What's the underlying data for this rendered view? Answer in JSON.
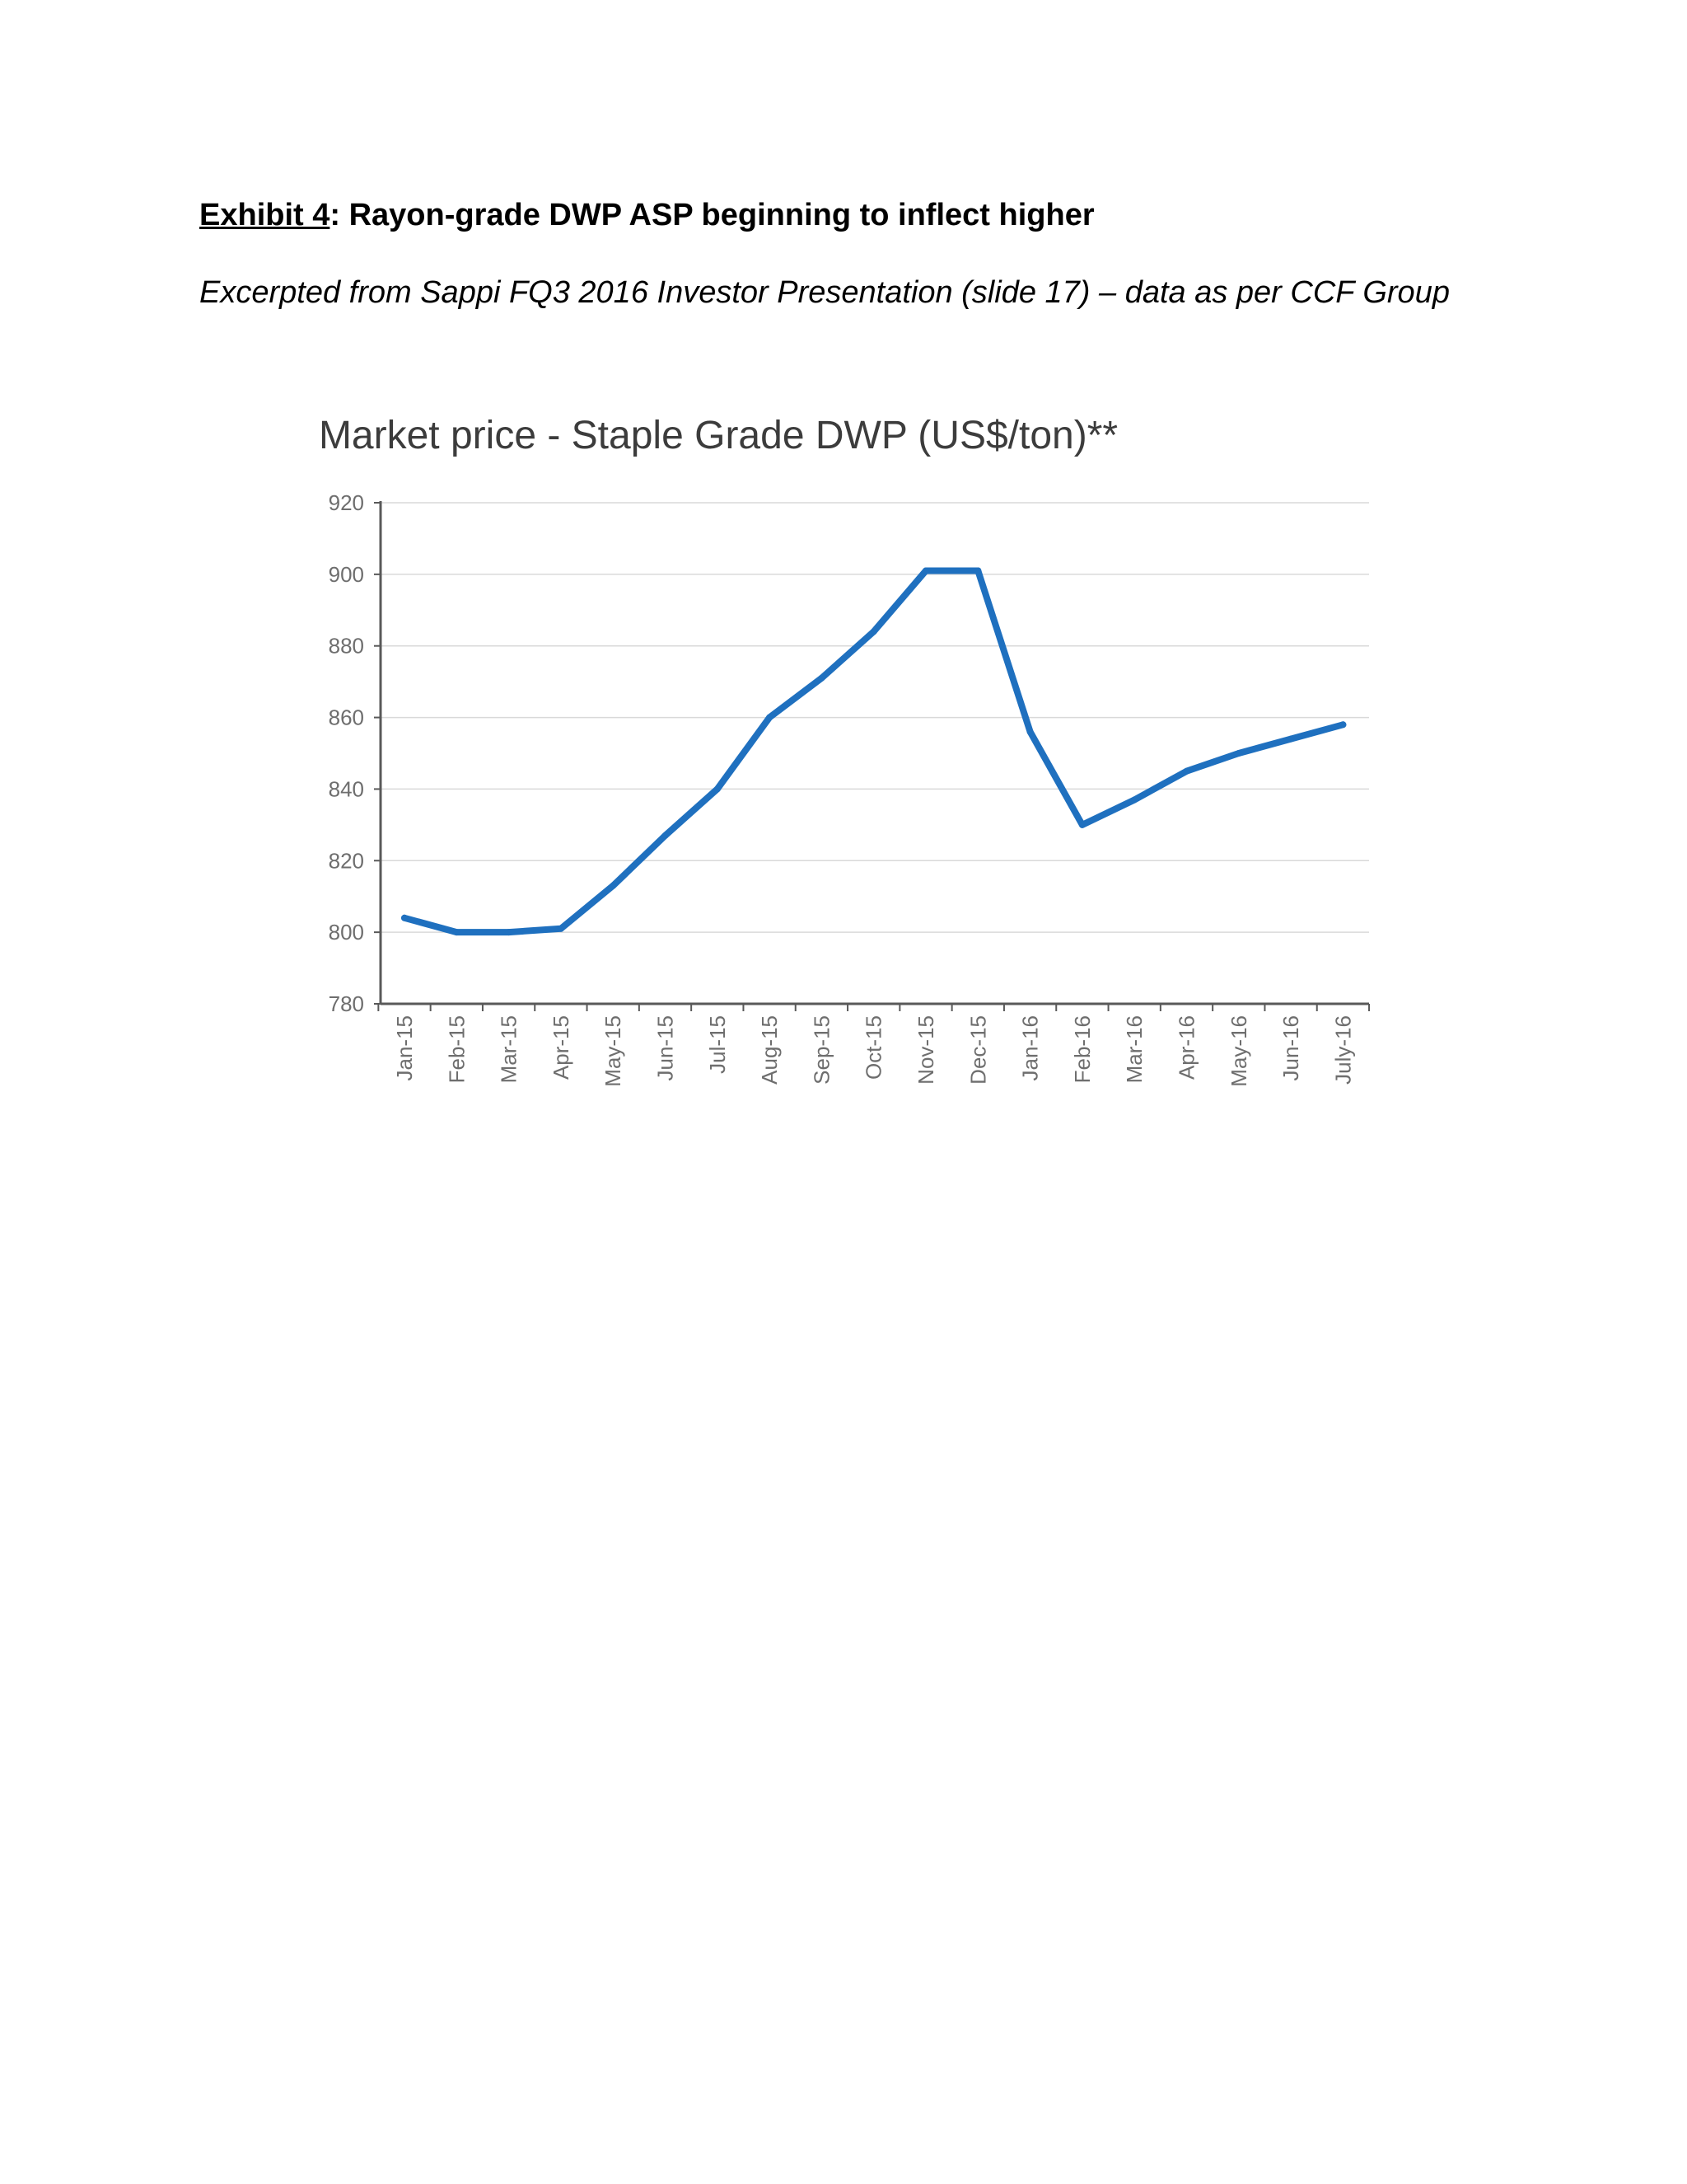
{
  "document": {
    "exhibit_label": "Exhibit 4",
    "heading_rest": ": Rayon-grade DWP ASP beginning to inflect higher",
    "subtitle": "Excerpted from Sappi FQ3 2016 Investor Presentation (slide 17) – data as per CCF Group"
  },
  "colors": {
    "line": "#1f70bf",
    "axis": "#595959",
    "grid": "#d9d9d9",
    "text": "#000000"
  },
  "chart_data": {
    "type": "line",
    "title": "Market price - Staple Grade DWP (US$/ton)**",
    "xlabel": "",
    "ylabel": "",
    "ylim": [
      780,
      920
    ],
    "yticks": [
      780,
      800,
      820,
      840,
      860,
      880,
      900,
      920
    ],
    "grid": true,
    "categories": [
      "Jan-15",
      "Feb-15",
      "Mar-15",
      "Apr-15",
      "May-15",
      "Jun-15",
      "Jul-15",
      "Aug-15",
      "Sep-15",
      "Oct-15",
      "Nov-15",
      "Dec-15",
      "Jan-16",
      "Feb-16",
      "Mar-16",
      "Apr-16",
      "May-16",
      "Jun-16",
      "July-16"
    ],
    "series": [
      {
        "name": "Staple Grade DWP",
        "values": [
          804,
          800,
          800,
          801,
          813,
          827,
          840,
          860,
          871,
          884,
          901,
          901,
          856,
          830,
          837,
          845,
          850,
          854,
          858
        ]
      }
    ]
  }
}
